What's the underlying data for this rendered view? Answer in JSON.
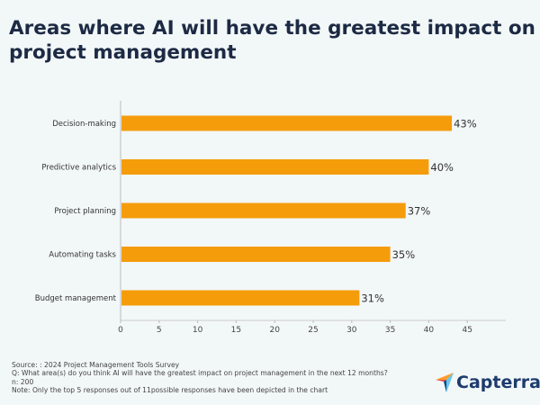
{
  "chart_data": {
    "type": "bar",
    "orientation": "horizontal",
    "title": "Areas where AI will have the greatest impact on project management",
    "categories": [
      "Decision-making",
      "Predictive analytics",
      "Project planning",
      "Automating tasks",
      "Budget management"
    ],
    "values": [
      43,
      40,
      37,
      35,
      31
    ],
    "data_labels": [
      "43%",
      "40%",
      "37%",
      "35%",
      "31%"
    ],
    "xlim": [
      0,
      50
    ],
    "xticks": [
      0,
      5,
      10,
      15,
      20,
      25,
      30,
      35,
      40,
      45
    ],
    "grid": false,
    "bar_color": "#f59c0b"
  },
  "footer": {
    "source": "Source: : 2024 Project Management Tools Survey",
    "question": "Q: What area(s) do you think AI will have the greatest impact on project management in the next 12 months?",
    "n": "n: 200",
    "note": "Note: Only the top 5 responses out of 11possible responses have been depicted in the chart"
  },
  "logo": {
    "text": "Capterra"
  }
}
